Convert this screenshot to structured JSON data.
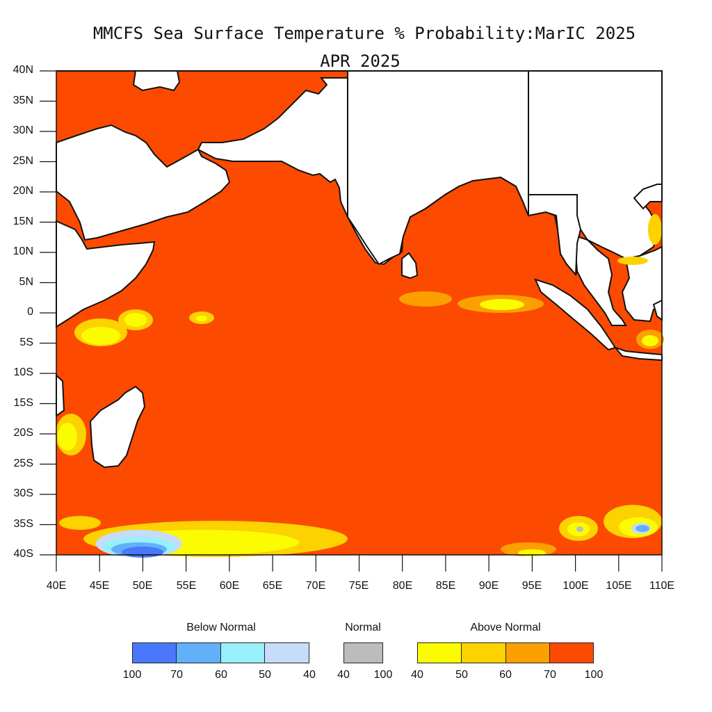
{
  "title_line1": "MMCFS Sea Surface Temperature % Probability:MarIC 2025",
  "title_line2": "APR 2025",
  "lat_labels": [
    "40N",
    "35N",
    "30N",
    "25N",
    "20N",
    "15N",
    "10N",
    "5N",
    "0",
    "5S",
    "10S",
    "15S",
    "20S",
    "25S",
    "30S",
    "35S",
    "40S"
  ],
  "lon_labels": [
    "40E",
    "45E",
    "50E",
    "55E",
    "60E",
    "65E",
    "70E",
    "75E",
    "80E",
    "85E",
    "90E",
    "95E",
    "100E",
    "105E",
    "110E"
  ],
  "legend": {
    "below_title": "Below Normal",
    "normal_title": "Normal",
    "above_title": "Above Normal",
    "below_ticks": [
      "100",
      "70",
      "60",
      "50",
      "40"
    ],
    "normal_ticks": [
      "40",
      "100"
    ],
    "above_ticks": [
      "40",
      "50",
      "60",
      "70",
      "100"
    ],
    "colors": {
      "below_100_70": "#4a78fc",
      "below_70_60": "#62b0fa",
      "below_60_50": "#98f0fc",
      "below_50_40": "#c6dcfa",
      "normal": "#bcbcbc",
      "above_40_50": "#fcfc00",
      "above_50_60": "#fcd200",
      "above_60_70": "#fca000",
      "above_70_100": "#fc4a00"
    }
  }
}
